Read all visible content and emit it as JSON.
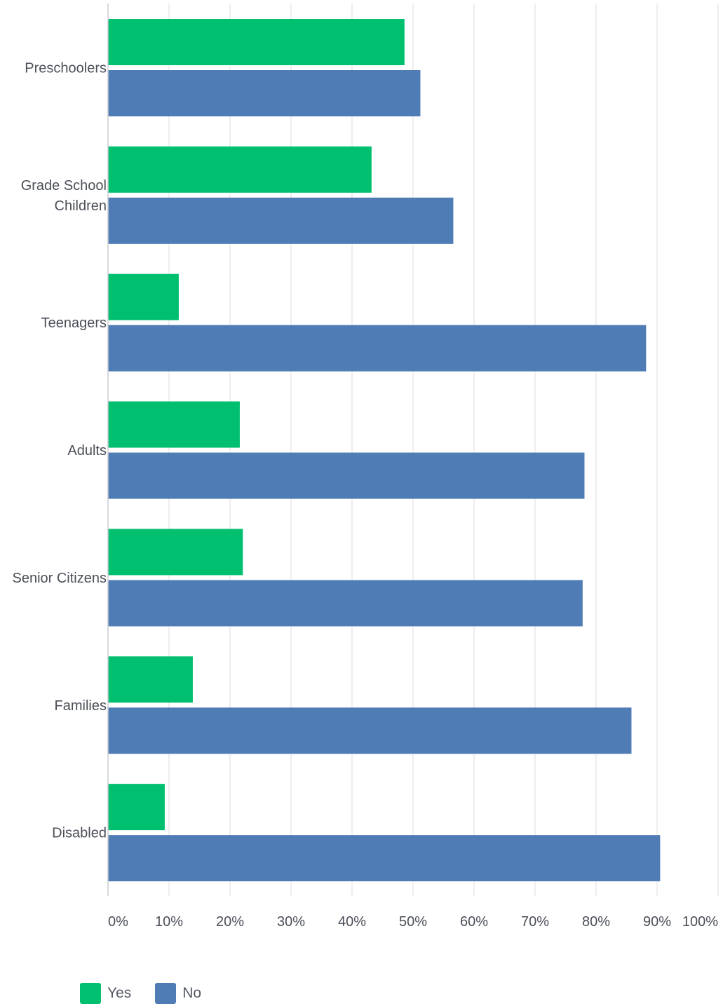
{
  "chart_data": {
    "type": "bar",
    "orientation": "horizontal",
    "categories": [
      "Preschoolers",
      "Grade School Children",
      "Teenagers",
      "Adults",
      "Senior Citizens",
      "Families",
      "Disabled"
    ],
    "category_lines": [
      [
        "Preschoolers"
      ],
      [
        "Grade School",
        "Children"
      ],
      [
        "Teenagers"
      ],
      [
        "Adults"
      ],
      [
        "Senior Citizens"
      ],
      [
        "Families"
      ],
      [
        "Disabled"
      ]
    ],
    "series": [
      {
        "name": "Yes",
        "color": "#00bf6f",
        "values": [
          48.6,
          43.2,
          11.6,
          21.6,
          22.1,
          13.9,
          9.3
        ]
      },
      {
        "name": "No",
        "color": "#507cb6",
        "values": [
          51.2,
          56.6,
          88.2,
          78.1,
          77.8,
          85.8,
          90.5
        ]
      }
    ],
    "x_ticks": [
      "0%",
      "10%",
      "20%",
      "30%",
      "40%",
      "50%",
      "60%",
      "70%",
      "80%",
      "90%",
      "100%"
    ],
    "xlim": [
      0,
      100
    ],
    "grid": true,
    "legend_position": "bottom-left"
  }
}
